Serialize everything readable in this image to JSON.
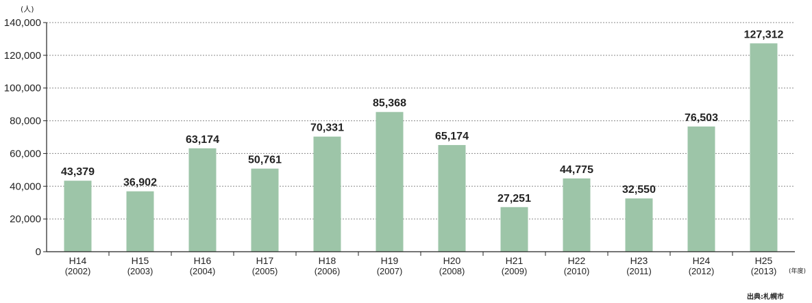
{
  "chart_data": {
    "type": "bar",
    "categories": [
      "H14",
      "H15",
      "H16",
      "H17",
      "H18",
      "H19",
      "H20",
      "H21",
      "H22",
      "H23",
      "H24",
      "H25"
    ],
    "category_years": [
      "(2002)",
      "(2003)",
      "(2004)",
      "(2005)",
      "(2006)",
      "(2007)",
      "(2008)",
      "(2009)",
      "(2010)",
      "(2011)",
      "(2012)",
      "(2013)"
    ],
    "values": [
      43379,
      36902,
      63174,
      50761,
      70331,
      85368,
      65174,
      27251,
      44775,
      32550,
      76503,
      127312
    ],
    "value_labels": [
      "43,379",
      "36,902",
      "63,174",
      "50,761",
      "70,331",
      "85,368",
      "65,174",
      "27,251",
      "44,775",
      "32,550",
      "76,503",
      "127,312"
    ],
    "y_ticks": [
      "0",
      "20,000",
      "40,000",
      "60,000",
      "80,000",
      "100,000",
      "120,000",
      "140,000"
    ],
    "ylim": [
      0,
      140000
    ],
    "ylabel": "(人)",
    "xlabel": "(年度)",
    "source": "出典:札幌市",
    "grid": true,
    "bar_color": "#9dc5a8"
  }
}
